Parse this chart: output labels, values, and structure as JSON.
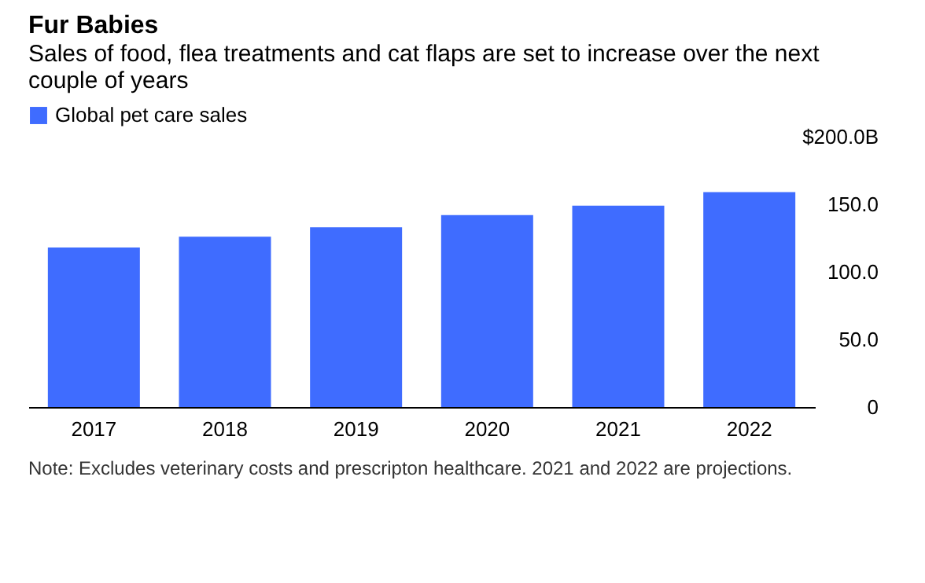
{
  "chart_data": {
    "type": "bar",
    "title": "Fur Babies",
    "subtitle": "Sales of food, flea treatments and cat flaps are set to increase over the next couple of years",
    "categories": [
      "2017",
      "2018",
      "2019",
      "2020",
      "2021",
      "2022"
    ],
    "series": [
      {
        "name": "Global pet care sales",
        "color": "#3f6cff",
        "values": [
          118,
          126,
          133,
          142,
          149,
          159
        ]
      }
    ],
    "ylim": [
      0,
      200
    ],
    "yticks": [
      {
        "value": 0,
        "label": "0"
      },
      {
        "value": 50,
        "label": "50.0"
      },
      {
        "value": 100,
        "label": "100.0"
      },
      {
        "value": 150,
        "label": "150.0"
      },
      {
        "value": 200,
        "label": "$200.0B"
      }
    ],
    "grid": false,
    "legend": "top left",
    "annotations": [
      "Note: Excludes veterinary costs and prescripton healthcare. 2021 and 2022 are projections."
    ]
  }
}
